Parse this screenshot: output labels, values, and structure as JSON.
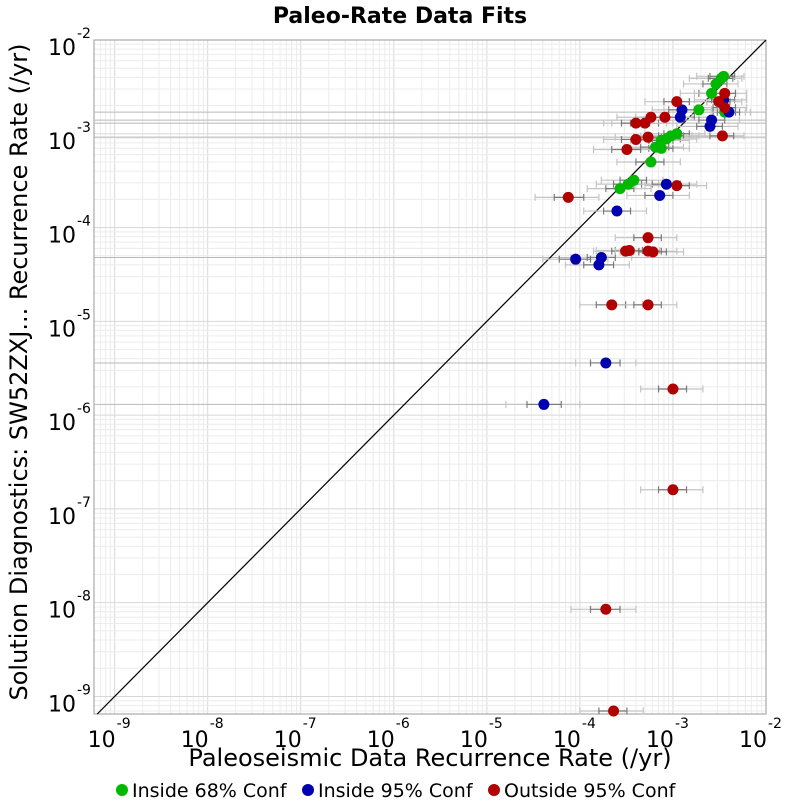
{
  "chart_data": {
    "type": "scatter",
    "title": "Paleo-Rate Data Fits",
    "xlabel": "Paleoseismic Data Recurrence Rate (/yr)",
    "ylabel": "Solution Diagnostics: SW52ZXJ... Recurrence Rate (/yr)",
    "x_scale": "log",
    "y_scale": "log",
    "xlim": [
      6e-10,
      0.01
    ],
    "ylim": [
      6.5e-10,
      0.01
    ],
    "x_ticks": [
      {
        "base": "10",
        "exp": "-9",
        "value": 1e-09
      },
      {
        "base": "10",
        "exp": "-8",
        "value": 1e-08
      },
      {
        "base": "10",
        "exp": "-7",
        "value": 1e-07
      },
      {
        "base": "10",
        "exp": "-6",
        "value": 1e-06
      },
      {
        "base": "10",
        "exp": "-5",
        "value": 1e-05
      },
      {
        "base": "10",
        "exp": "-4",
        "value": 0.0001
      },
      {
        "base": "10",
        "exp": "-3",
        "value": 0.001
      },
      {
        "base": "10",
        "exp": "-2",
        "value": 0.01
      }
    ],
    "y_ticks": [
      {
        "base": "10",
        "exp": "-9",
        "value": 1e-09
      },
      {
        "base": "10",
        "exp": "-8",
        "value": 1e-08
      },
      {
        "base": "10",
        "exp": "-7",
        "value": 1e-07
      },
      {
        "base": "10",
        "exp": "-6",
        "value": 1e-06
      },
      {
        "base": "10",
        "exp": "-5",
        "value": 1e-05
      },
      {
        "base": "10",
        "exp": "-4",
        "value": 0.0001
      },
      {
        "base": "10",
        "exp": "-3",
        "value": 0.001
      },
      {
        "base": "10",
        "exp": "-2",
        "value": 0.01
      }
    ],
    "grid": true,
    "reference_line": "y = x",
    "legend_position": "bottom",
    "series": [
      {
        "name": "Inside 68% Conf",
        "color": "#00b800",
        "points": [
          {
            "x": 0.0035,
            "y": 0.0041,
            "x68": [
              0.0025,
              0.0046
            ],
            "x95": [
              0.0018,
              0.0058
            ]
          },
          {
            "x": 0.0033,
            "y": 0.0039,
            "x68": [
              0.0024,
              0.0044
            ],
            "x95": [
              0.0015,
              0.0055
            ]
          },
          {
            "x": 0.0029,
            "y": 0.0034,
            "x68": [
              0.0021,
              0.0038
            ],
            "x95": [
              0.0013,
              0.005
            ]
          },
          {
            "x": 0.0026,
            "y": 0.0027,
            "x68": [
              0.0019,
              0.0035
            ],
            "x95": [
              0.0012,
              0.0047
            ]
          },
          {
            "x": 0.0019,
            "y": 0.0018,
            "x68": [
              0.0013,
              0.0026
            ],
            "x95": [
              0.0008,
              0.0038
            ]
          },
          {
            "x": 0.0036,
            "y": 0.0017,
            "x68": [
              0.0027,
              0.0047
            ],
            "x95": [
              0.0017,
              0.006
            ]
          },
          {
            "x": 0.0011,
            "y": 0.001,
            "x68": [
              0.0008,
              0.0015
            ],
            "x95": [
              0.0005,
              0.0022
            ]
          },
          {
            "x": 0.00095,
            "y": 0.00095,
            "x68": [
              0.0007,
              0.0013
            ],
            "x95": [
              0.00045,
              0.0019
            ]
          },
          {
            "x": 0.00085,
            "y": 0.00088,
            "x68": [
              0.0006,
              0.0012
            ],
            "x95": [
              0.0004,
              0.0018
            ]
          },
          {
            "x": 0.00075,
            "y": 0.00085,
            "x68": [
              0.00055,
              0.001
            ],
            "x95": [
              0.00035,
              0.0015
            ]
          },
          {
            "x": 0.00065,
            "y": 0.00072,
            "x68": [
              0.00045,
              0.0009
            ],
            "x95": [
              0.0003,
              0.0013
            ]
          },
          {
            "x": 0.00075,
            "y": 0.0007,
            "x68": [
              0.00055,
              0.001
            ],
            "x95": [
              0.00035,
              0.0015
            ]
          },
          {
            "x": 0.00058,
            "y": 0.0005,
            "x68": [
              0.0004,
              0.0008
            ],
            "x95": [
              0.00025,
              0.0012
            ]
          },
          {
            "x": 0.00038,
            "y": 0.00032,
            "x68": [
              0.00027,
              0.00052
            ],
            "x95": [
              0.00017,
              0.00078
            ]
          },
          {
            "x": 0.00033,
            "y": 0.00029,
            "x68": [
              0.00023,
              0.00046
            ],
            "x95": [
              0.00015,
              0.0007
            ]
          },
          {
            "x": 0.00027,
            "y": 0.00026,
            "x68": [
              0.00019,
              0.00038
            ],
            "x95": [
              0.00012,
              0.00058
            ]
          }
        ]
      },
      {
        "name": "Inside 95% Conf",
        "color": "#0000b0",
        "points": [
          {
            "x": 0.0035,
            "y": 0.0023,
            "x68": [
              0.0026,
              0.0046
            ],
            "x95": [
              0.0017,
              0.0062
            ]
          },
          {
            "x": 0.004,
            "y": 0.0017,
            "x68": [
              0.003,
              0.0052
            ],
            "x95": [
              0.002,
              0.0068
            ]
          },
          {
            "x": 0.00125,
            "y": 0.0018,
            "x68": [
              0.0009,
              0.0017
            ],
            "x95": [
              0.0006,
              0.0026
            ]
          },
          {
            "x": 0.0012,
            "y": 0.0015,
            "x68": [
              0.00085,
              0.0017
            ],
            "x95": [
              0.00055,
              0.0025
            ]
          },
          {
            "x": 0.0026,
            "y": 0.0014,
            "x68": [
              0.0019,
              0.0036
            ],
            "x95": [
              0.0012,
              0.0052
            ]
          },
          {
            "x": 0.0025,
            "y": 0.0012,
            "x68": [
              0.0018,
              0.0034
            ],
            "x95": [
              0.0011,
              0.005
            ]
          },
          {
            "x": 0.00085,
            "y": 0.00029,
            "x68": [
              0.0006,
              0.0012
            ],
            "x95": [
              0.0004,
              0.0018
            ]
          },
          {
            "x": 0.00072,
            "y": 0.00022,
            "x68": [
              0.0005,
              0.001
            ],
            "x95": [
              0.00032,
              0.0015
            ]
          },
          {
            "x": 0.00025,
            "y": 0.00015,
            "x68": [
              0.00018,
              0.00035
            ],
            "x95": [
              0.00011,
              0.00052
            ]
          },
          {
            "x": 0.00017,
            "y": 4.8e-05,
            "x68": [
              0.00012,
              0.00024
            ],
            "x95": [
              8e-05,
              0.00036
            ]
          },
          {
            "x": 9e-05,
            "y": 4.6e-05,
            "x68": [
              6e-05,
              0.00013
            ],
            "x95": [
              4e-05,
              0.0002
            ]
          },
          {
            "x": 0.00016,
            "y": 4e-05,
            "x68": [
              0.00011,
              0.00023
            ],
            "x95": [
              7e-05,
              0.00034
            ]
          },
          {
            "x": 0.00019,
            "y": 3.6e-06,
            "x68": [
              0.00013,
              0.00027
            ],
            "x95": [
              9e-05,
              0.0004
            ]
          },
          {
            "x": 4.1e-05,
            "y": 1.3e-06,
            "x68": [
              2.7e-05,
              6.3e-05
            ],
            "x95": [
              1.6e-05,
              0.0001
            ]
          }
        ]
      },
      {
        "name": "Outside 95% Conf",
        "color": "#b00000",
        "points": [
          {
            "x": 0.0036,
            "y": 0.0027,
            "x68": [
              0.0027,
              0.0047
            ],
            "x95": [
              0.0017,
              0.0062
            ]
          },
          {
            "x": 0.0031,
            "y": 0.0022,
            "x68": [
              0.0023,
              0.0041
            ],
            "x95": [
              0.0015,
              0.0055
            ]
          },
          {
            "x": 0.0036,
            "y": 0.0019,
            "x68": [
              0.0027,
              0.0047
            ],
            "x95": [
              0.0018,
              0.0062
            ]
          },
          {
            "x": 0.0034,
            "y": 0.00095,
            "x68": [
              0.0025,
              0.0045
            ],
            "x95": [
              0.0016,
              0.0058
            ]
          },
          {
            "x": 0.0011,
            "y": 0.0022,
            "x68": [
              0.0008,
              0.0015
            ],
            "x95": [
              0.0005,
              0.0023
            ]
          },
          {
            "x": 0.00058,
            "y": 0.0015,
            "x68": [
              0.0004,
              0.0008
            ],
            "x95": [
              0.00025,
              0.0012
            ]
          },
          {
            "x": 0.00082,
            "y": 0.0015,
            "x68": [
              0.0006,
              0.0011
            ],
            "x95": [
              0.0004,
              0.0016
            ]
          },
          {
            "x": 0.0005,
            "y": 0.0013,
            "x68": [
              0.00035,
              0.0007
            ],
            "x95": [
              0.00022,
              0.001
            ]
          },
          {
            "x": 0.0004,
            "y": 0.0013,
            "x68": [
              0.00028,
              0.00056
            ],
            "x95": [
              0.00018,
              0.00085
            ]
          },
          {
            "x": 0.00054,
            "y": 0.00092,
            "x68": [
              0.00038,
              0.00075
            ],
            "x95": [
              0.00024,
              0.0011
            ]
          },
          {
            "x": 0.0004,
            "y": 0.00087,
            "x68": [
              0.00028,
              0.00055
            ],
            "x95": [
              0.00018,
              0.00082
            ]
          },
          {
            "x": 0.00032,
            "y": 0.00068,
            "x68": [
              0.00022,
              0.00045
            ],
            "x95": [
              0.00014,
              0.00068
            ]
          },
          {
            "x": 0.0011,
            "y": 0.00028,
            "x68": [
              0.0008,
              0.0015
            ],
            "x95": [
              0.0005,
              0.0023
            ]
          },
          {
            "x": 7.5e-05,
            "y": 0.00021,
            "x68": [
              5.3e-05,
              0.00011
            ],
            "x95": [
              3.3e-05,
              0.00016
            ]
          },
          {
            "x": 0.00054,
            "y": 7.8e-05,
            "x68": [
              0.00038,
              0.00075
            ],
            "x95": [
              0.00024,
              0.0011
            ]
          },
          {
            "x": 0.00034,
            "y": 5.7e-05,
            "x68": [
              0.00024,
              0.00047
            ],
            "x95": [
              0.00015,
              0.00072
            ]
          },
          {
            "x": 0.00031,
            "y": 5.6e-05,
            "x68": [
              0.00022,
              0.00043
            ],
            "x95": [
              0.00014,
              0.00065
            ]
          },
          {
            "x": 0.00054,
            "y": 5.6e-05,
            "x68": [
              0.00038,
              0.00075
            ],
            "x95": [
              0.00024,
              0.0011
            ]
          },
          {
            "x": 0.00061,
            "y": 5.5e-05,
            "x68": [
              0.00043,
              0.00085
            ],
            "x95": [
              0.00027,
              0.0013
            ]
          },
          {
            "x": 0.00022,
            "y": 1.5e-05,
            "x68": [
              0.00015,
              0.00031
            ],
            "x95": [
              0.0001,
              0.00047
            ]
          },
          {
            "x": 0.00054,
            "y": 1.5e-05,
            "x68": [
              0.00038,
              0.00075
            ],
            "x95": [
              0.00024,
              0.0011
            ]
          },
          {
            "x": 0.001,
            "y": 1.9e-06,
            "x68": [
              0.0007,
              0.0014
            ],
            "x95": [
              0.00045,
              0.0021
            ]
          },
          {
            "x": 0.001,
            "y": 1.6e-07,
            "x68": [
              0.0007,
              0.0014
            ],
            "x95": [
              0.00045,
              0.0021
            ]
          },
          {
            "x": 0.00019,
            "y": 8.5e-09,
            "x68": [
              0.00013,
              0.00027
            ],
            "x95": [
              8e-05,
              0.0004
            ]
          },
          {
            "x": 0.00023,
            "y": 7e-10,
            "x68": [
              0.00016,
              0.00032
            ],
            "x95": [
              0.0001,
              0.00048
            ]
          }
        ]
      }
    ],
    "reference_lines_y": [
      0.0017,
      0.0014,
      0.0013,
      0.00092,
      4.8e-05,
      3.6e-06,
      1.3e-06
    ]
  }
}
